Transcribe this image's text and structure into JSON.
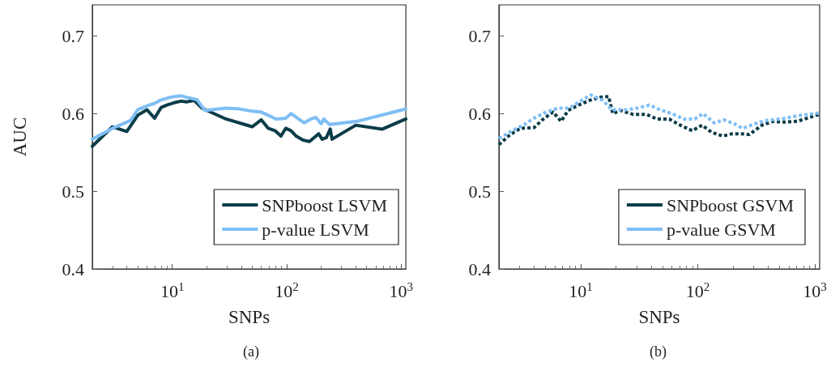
{
  "chart_data": [
    {
      "type": "line",
      "xlabel": "SNPs",
      "ylabel": "AUC",
      "annotations": [
        "(a)"
      ],
      "log": "x",
      "grid": false,
      "legend": "bottom right",
      "marker": "none",
      "line_style": "solid",
      "xlim": [
        2,
        1100
      ],
      "xticks": [
        {
          "value": 10,
          "label": "10$^{1}$"
        },
        {
          "value": 100,
          "label": "10$^{2}$"
        },
        {
          "value": 1000,
          "label": "10$^{3}$"
        }
      ],
      "ylim": [
        0.4,
        0.74
      ],
      "yticks": [
        0.4,
        0.5,
        0.6,
        0.7
      ],
      "series": [
        {
          "name": "SNPboost LSVM",
          "color": "#0b3c49",
          "x": [
            2,
            3,
            4,
            5,
            6,
            7,
            8,
            9,
            10.4,
            11.9,
            13.3,
            15.5,
            18.2,
            29.5,
            50,
            60,
            69,
            79,
            89,
            98,
            109,
            121,
            138,
            158,
            190,
            204,
            222,
            240,
            249,
            401,
            685,
            1100
          ],
          "values": [
            0.558,
            0.583,
            0.577,
            0.598,
            0.605,
            0.594,
            0.608,
            0.611,
            0.614,
            0.616,
            0.615,
            0.617,
            0.607,
            0.593,
            0.583,
            0.592,
            0.581,
            0.578,
            0.571,
            0.581,
            0.578,
            0.571,
            0.566,
            0.564,
            0.574,
            0.567,
            0.569,
            0.58,
            0.567,
            0.585,
            0.58,
            0.593
          ]
        },
        {
          "name": "p-value LSVM",
          "color": "#7fbef5",
          "x": [
            2,
            3,
            4.3,
            5,
            6.3,
            7,
            7.8,
            9.6,
            11.9,
            13.3,
            16.4,
            19.3,
            29.5,
            38.5,
            50,
            60,
            81,
            98,
            109,
            142,
            162,
            180,
            200,
            211,
            236,
            411,
            1100
          ],
          "values": [
            0.567,
            0.581,
            0.591,
            0.605,
            0.611,
            0.613,
            0.617,
            0.621,
            0.623,
            0.621,
            0.618,
            0.604,
            0.607,
            0.606,
            0.603,
            0.602,
            0.593,
            0.594,
            0.6,
            0.588,
            0.593,
            0.595,
            0.587,
            0.593,
            0.586,
            0.59,
            0.606
          ]
        }
      ]
    },
    {
      "type": "line",
      "xlabel": "SNPs",
      "annotations": [
        "(b)"
      ],
      "log": "x",
      "grid": false,
      "legend": "bottom right",
      "marker": "none",
      "line_style": "dashed",
      "xlim": [
        2,
        1100
      ],
      "xticks": [
        {
          "value": 10,
          "label": "10$^{1}$"
        },
        {
          "value": 100,
          "label": "10$^{2}$"
        },
        {
          "value": 1000,
          "label": "10$^{3}$"
        }
      ],
      "ylim": [
        0.4,
        0.74
      ],
      "yticks": [
        0.4,
        0.5,
        0.6,
        0.7
      ],
      "series": [
        {
          "name": "SNPboost GSVM",
          "color": "#0b3c49",
          "x": [
            2,
            2.5,
            3.06,
            4,
            4.7,
            5.8,
            6.8,
            7.8,
            9.6,
            11.9,
            14.7,
            17.3,
            18.8,
            22,
            27.9,
            36.4,
            44.8,
            57,
            71,
            89.5,
            109,
            131,
            163,
            196,
            235,
            276,
            352,
            438,
            554,
            707,
            895,
            1100
          ],
          "values": [
            0.56,
            0.573,
            0.581,
            0.582,
            0.592,
            0.602,
            0.59,
            0.604,
            0.611,
            0.617,
            0.621,
            0.622,
            0.6,
            0.604,
            0.599,
            0.599,
            0.593,
            0.593,
            0.585,
            0.578,
            0.585,
            0.576,
            0.571,
            0.574,
            0.574,
            0.573,
            0.585,
            0.59,
            0.589,
            0.59,
            0.595,
            0.599
          ]
        },
        {
          "name": "p-value GSVM",
          "color": "#7fbef5",
          "x": [
            2,
            2.6,
            3.3,
            4.1,
            4.9,
            6.4,
            8,
            9.9,
            12.2,
            15.5,
            18.3,
            24.5,
            30.3,
            38.5,
            47.5,
            60,
            76,
            94,
            111,
            138,
            166,
            205,
            240,
            299,
            371,
            512,
            707,
            1100
          ],
          "values": [
            0.568,
            0.578,
            0.586,
            0.595,
            0.601,
            0.607,
            0.607,
            0.616,
            0.624,
            0.617,
            0.605,
            0.605,
            0.607,
            0.611,
            0.605,
            0.6,
            0.593,
            0.593,
            0.6,
            0.588,
            0.592,
            0.587,
            0.581,
            0.586,
            0.591,
            0.593,
            0.597,
            0.601
          ]
        }
      ]
    }
  ]
}
